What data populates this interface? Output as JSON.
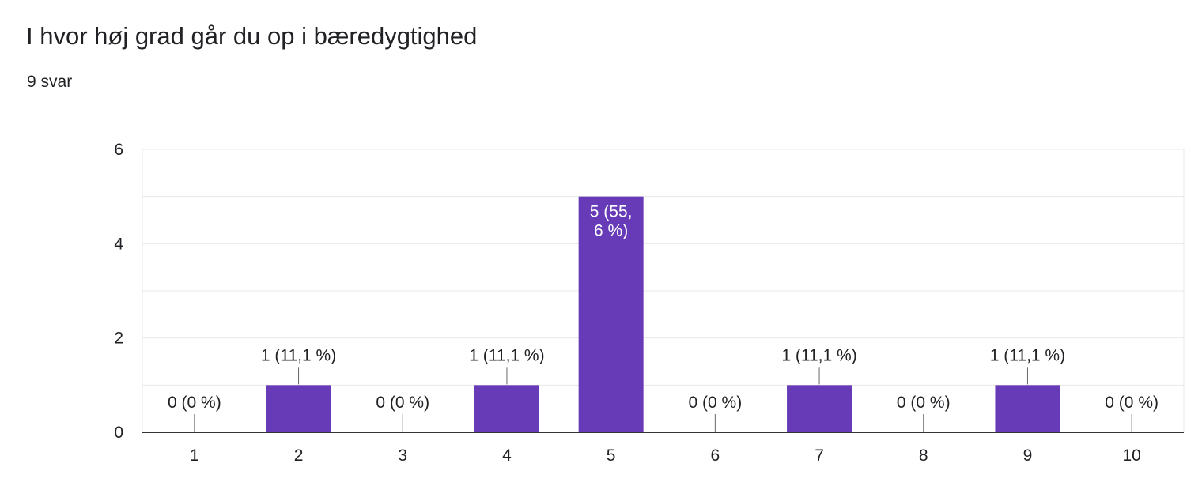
{
  "header": {
    "title": "I hvor høj grad går du op i bæredygtighed",
    "response_count": "9 svar"
  },
  "colors": {
    "bar": "#673ab7",
    "grid": "#e8e8e8",
    "axis": "#333333",
    "text": "#202124",
    "bar_label_inside": "#ffffff"
  },
  "chart_data": {
    "type": "bar",
    "categories": [
      "1",
      "2",
      "3",
      "4",
      "5",
      "6",
      "7",
      "8",
      "9",
      "10"
    ],
    "values": [
      0,
      1,
      0,
      1,
      5,
      0,
      1,
      0,
      1,
      0
    ],
    "data_labels": [
      "0 (0 %)",
      "1 (11,1 %)",
      "0 (0 %)",
      "1 (11,1 %)",
      "5 (55,\n6 %)",
      "0 (0 %)",
      "1 (11,1 %)",
      "0 (0 %)",
      "1 (11,1 %)",
      "0 (0 %)"
    ],
    "y_ticks": [
      "0",
      "2",
      "4",
      "6"
    ],
    "ylim": [
      0,
      6
    ],
    "grid": true,
    "minor_grid_step": 1,
    "legend": "none"
  }
}
